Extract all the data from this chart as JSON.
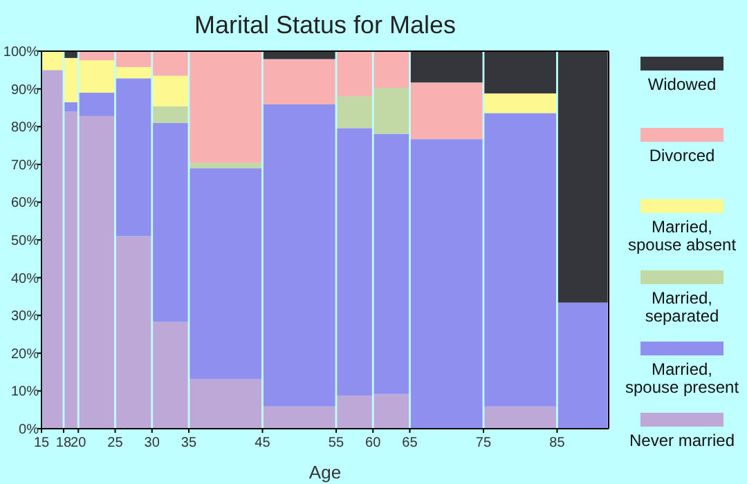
{
  "chart_data": {
    "type": "bar",
    "stacked": true,
    "title": "Marital Status for Males",
    "xlabel": "Age",
    "x": [
      16.5,
      19,
      22.5,
      27.5,
      32.5,
      40,
      50,
      57.5,
      62.5,
      70,
      80,
      88.5
    ],
    "xlim": [
      15,
      92
    ],
    "xticks": [
      15,
      18,
      20,
      25,
      30,
      35,
      45,
      55,
      60,
      65,
      75,
      85
    ],
    "ylim": [
      0,
      100
    ],
    "yticks": [
      {
        "value": 0,
        "label": "0%"
      },
      {
        "value": 10,
        "label": "10%"
      },
      {
        "value": 20,
        "label": "20%"
      },
      {
        "value": 30,
        "label": "30%"
      },
      {
        "value": 40,
        "label": "40%"
      },
      {
        "value": 50,
        "label": "50%"
      },
      {
        "value": 60,
        "label": "60%"
      },
      {
        "value": 70,
        "label": "70%"
      },
      {
        "value": 80,
        "label": "80%"
      },
      {
        "value": 90,
        "label": "90%"
      },
      {
        "value": 100,
        "label": "100%"
      }
    ],
    "legend": "right",
    "grid": false,
    "series": [
      {
        "name": "Never married",
        "color": "#bea8d8",
        "values": [
          95,
          84,
          82.8,
          51,
          28.3,
          13.2,
          5.9,
          8.8,
          9.2,
          0,
          5.9,
          0
        ]
      },
      {
        "name": "Married, spouse present",
        "color": "#8f8ff0",
        "values": [
          0,
          2.5,
          6.2,
          41.8,
          52.7,
          55.8,
          80,
          70.8,
          68.9,
          76.7,
          77.7,
          33.4
        ]
      },
      {
        "name": "Married, separated",
        "color": "#c3d9a5",
        "values": [
          0,
          0,
          0,
          0,
          4.4,
          1.4,
          0,
          8.4,
          12.2,
          0,
          0,
          0
        ]
      },
      {
        "name": "Married, spouse absent",
        "color": "#fdf88f",
        "values": [
          5,
          11.7,
          8.6,
          3,
          8.1,
          0,
          0,
          0,
          0,
          0,
          5.2,
          0
        ]
      },
      {
        "name": "Divorced",
        "color": "#f8b0b0",
        "values": [
          0,
          0,
          2.4,
          4.2,
          6.5,
          29.6,
          12,
          12,
          9.7,
          15,
          0,
          0
        ]
      },
      {
        "name": "Widowed",
        "color": "#35363c",
        "values": [
          0,
          1.8,
          0,
          0,
          0,
          0,
          2.1,
          0,
          0,
          8.3,
          11.2,
          66.6
        ]
      }
    ]
  }
}
